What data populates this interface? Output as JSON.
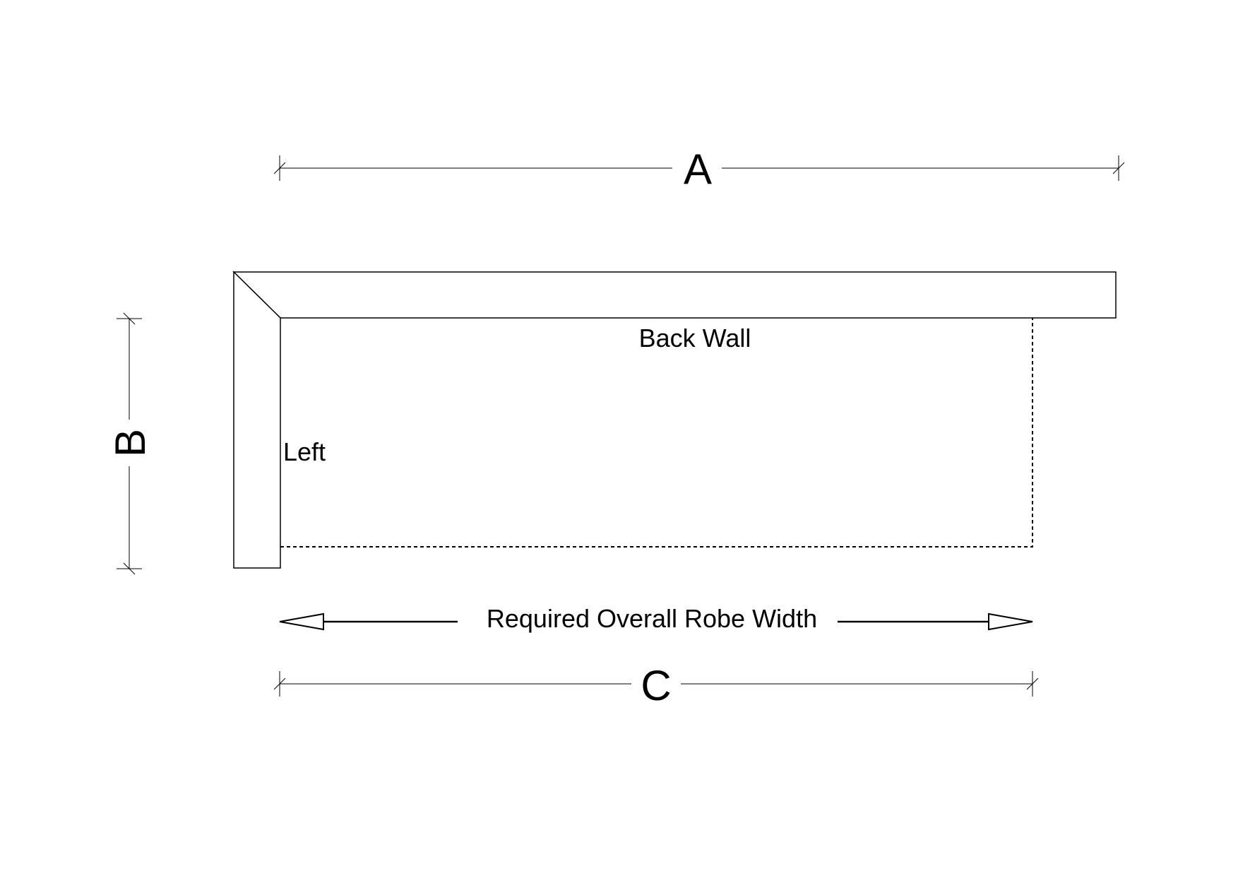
{
  "dimensions": {
    "a_label": "A",
    "b_label": "B",
    "c_label": "C"
  },
  "walls": {
    "back_label": "Back Wall",
    "left_label": "Left"
  },
  "width_arrow": {
    "label": "Required Overall Robe Width"
  }
}
